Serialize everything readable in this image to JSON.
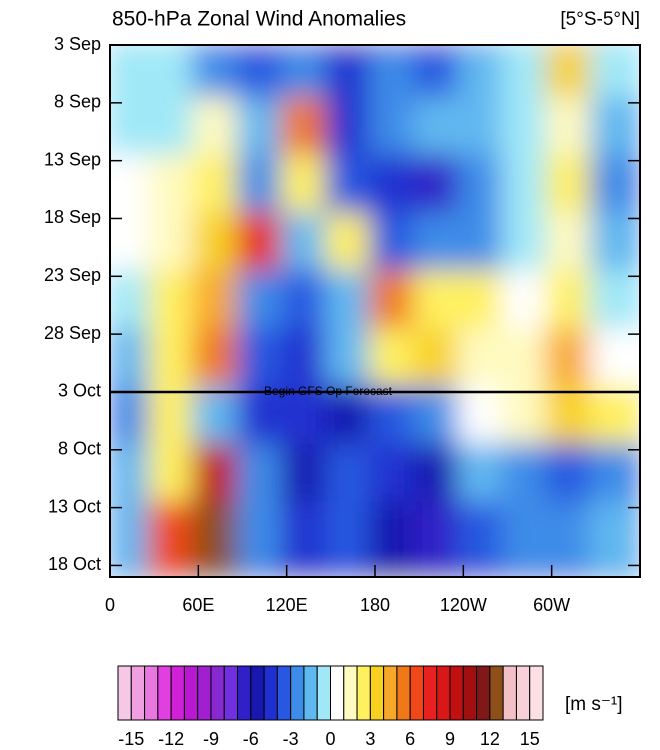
{
  "chart_data": {
    "type": "heatmap",
    "title": "850-hPa Zonal Wind Anomalies",
    "subtitle": "[5°S-5°N]",
    "xlim": [
      0,
      360
    ],
    "xticks": [
      0,
      {
        "value": 60,
        "label": "60E"
      },
      {
        "value": 120,
        "label": "120E"
      },
      180,
      {
        "value": 240,
        "label": "120W"
      },
      {
        "value": 300,
        "label": "60W"
      }
    ],
    "ylim": [
      0,
      46
    ],
    "yticks": [
      {
        "value": 0,
        "label": "3 Sep"
      },
      {
        "value": 5,
        "label": "8 Sep"
      },
      {
        "value": 10,
        "label": "13 Sep"
      },
      {
        "value": 15,
        "label": "18 Sep"
      },
      {
        "value": 20,
        "label": "23 Sep"
      },
      {
        "value": 25,
        "label": "28 Sep"
      },
      {
        "value": 30,
        "label": "3 Oct"
      },
      {
        "value": 35,
        "label": "8 Oct"
      },
      {
        "value": 40,
        "label": "13 Oct"
      },
      {
        "value": 45,
        "label": "18 Oct"
      }
    ],
    "xbins": [
      0,
      30,
      60,
      90,
      120,
      150,
      180,
      210,
      240,
      270,
      300,
      330,
      360
    ],
    "ybins": [
      0,
      5,
      10,
      15,
      20,
      25,
      30,
      35,
      40,
      46
    ],
    "z": [
      [
        -1,
        -1,
        -3,
        -4,
        -3,
        -5,
        -3,
        -4,
        -2,
        -1,
        3,
        -1
      ],
      [
        -1,
        -1,
        1,
        -2,
        5,
        -5,
        -3,
        -2,
        -2,
        -1,
        1,
        -2
      ],
      [
        0,
        1,
        2,
        -3,
        2,
        -4,
        -5,
        -7,
        -3,
        -1,
        2,
        -3
      ],
      [
        0,
        1,
        3,
        7,
        -2,
        2,
        -4,
        -3,
        -3,
        -1,
        1,
        -2
      ],
      [
        -1,
        2,
        4,
        -3,
        -4,
        -2,
        5,
        2,
        2,
        0,
        2,
        -1
      ],
      [
        -2,
        2,
        5,
        -4,
        -5,
        -2,
        2,
        3,
        1,
        1,
        4,
        0
      ],
      [
        -3,
        2,
        -2,
        -5,
        -5,
        -6,
        -4,
        -3,
        0,
        1,
        3,
        2
      ],
      [
        -2,
        2,
        9,
        -3,
        -6,
        -4,
        -5,
        -6,
        -2,
        -3,
        -4,
        -3
      ],
      [
        -2,
        6,
        12,
        -3,
        -5,
        -4,
        -6,
        -7,
        -4,
        -3,
        -3,
        -2
      ]
    ],
    "annotations": [
      {
        "text": "Begin GFS Op Forecast",
        "y": 30
      }
    ],
    "colorbar": {
      "levels": [
        -16,
        -15,
        -14,
        -13,
        -12,
        -11,
        -10,
        -9,
        -8,
        -7,
        -6,
        -5,
        -4,
        -3,
        -2,
        -1,
        0,
        1,
        2,
        3,
        4,
        5,
        6,
        7,
        8,
        9,
        10,
        11,
        12,
        13,
        14,
        15,
        16
      ],
      "colors": [
        "#f6c8e8",
        "#f0a0e0",
        "#e878e0",
        "#e040e0",
        "#d020d8",
        "#b818d0",
        "#a020d0",
        "#8828d0",
        "#7030e0",
        "#3020c8",
        "#1818b0",
        "#2030d0",
        "#2858e0",
        "#3c8ce8",
        "#60b8f0",
        "#a0e8f8",
        "#ffffff",
        "#fffac0",
        "#fff060",
        "#f8d020",
        "#f8a828",
        "#f07818",
        "#f04818",
        "#e82020",
        "#d81818",
        "#c01010",
        "#a01010",
        "#801818",
        "#8c5018",
        "#f4c0c8",
        "#f8d0d8",
        "#fce0e4"
      ],
      "ticks": [
        -15,
        -12,
        -9,
        -6,
        -3,
        0,
        3,
        6,
        9,
        12,
        15
      ],
      "label": "[m s⁻¹]"
    }
  }
}
